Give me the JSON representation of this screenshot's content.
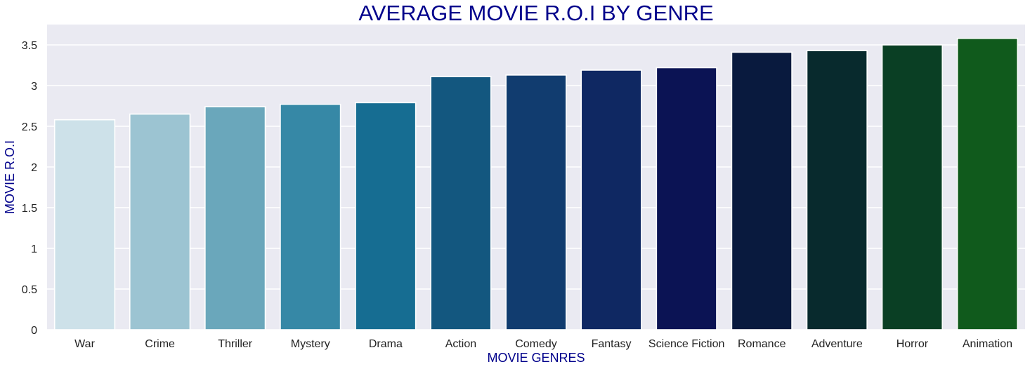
{
  "chart_data": {
    "type": "bar",
    "title": "AVERAGE MOVIE R.O.I BY GENRE",
    "xlabel": "MOVIE GENRES",
    "ylabel": "MOVIE R.O.I",
    "categories": [
      "War",
      "Crime",
      "Thriller",
      "Mystery",
      "Drama",
      "Action",
      "Comedy",
      "Fantasy",
      "Science Fiction",
      "Romance",
      "Adventure",
      "Horror",
      "Animation"
    ],
    "values": [
      2.58,
      2.65,
      2.74,
      2.77,
      2.79,
      3.11,
      3.13,
      3.19,
      3.22,
      3.41,
      3.43,
      3.5,
      3.58
    ],
    "colors": [
      "#cde1e9",
      "#9cc4d2",
      "#6aa7bb",
      "#3688a6",
      "#166d92",
      "#13577f",
      "#113c6f",
      "#0f2862",
      "#0b1354",
      "#091a3e",
      "#082a2d",
      "#0a3f24",
      "#105a1c"
    ],
    "yticks": [
      "0",
      "0.5",
      "1",
      "1.5",
      "2",
      "2.5",
      "3",
      "3.5"
    ],
    "ylim": [
      0,
      3.75
    ],
    "grid": true,
    "background": "#eaeaf2",
    "label_color": "#00008b"
  }
}
